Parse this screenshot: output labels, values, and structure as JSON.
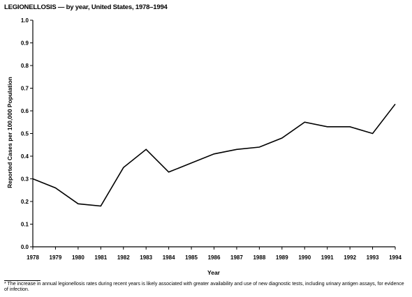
{
  "title": "LEGIONELLOSIS — by year, United States, 1978–1994",
  "footnote": "* The increase in annual legionellosis rates during recent years is likely associated with greater availability and use of new diagnostic tests, including urinary antigen assays, for evidence of infection.",
  "chart_data": {
    "type": "line",
    "title": "LEGIONELLOSIS — by year, United States, 1978–1994",
    "xlabel": "Year",
    "ylabel": "Reported Cases per 100,000 Population",
    "x": [
      "1978",
      "1979",
      "1980",
      "1981",
      "1982",
      "1983",
      "1984",
      "1985",
      "1986",
      "1987",
      "1988",
      "1989",
      "1990",
      "1991",
      "1992",
      "1993",
      "1994"
    ],
    "values": [
      0.3,
      0.26,
      0.19,
      0.18,
      0.35,
      0.43,
      0.33,
      0.37,
      0.41,
      0.43,
      0.44,
      0.48,
      0.55,
      0.53,
      0.53,
      0.5,
      0.63
    ],
    "ylim": [
      0.0,
      1.0
    ],
    "yticks": [
      "0.0",
      "0.1",
      "0.2",
      "0.3",
      "0.4",
      "0.5",
      "0.6",
      "0.7",
      "0.8",
      "0.9",
      "1.0"
    ],
    "grid": false,
    "legend": "none",
    "line_color": "#000000"
  }
}
